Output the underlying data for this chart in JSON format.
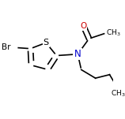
{
  "bg_color": "#ffffff",
  "bond_color": "#000000",
  "atom_colors": {
    "S": "#000000",
    "N": "#0000cd",
    "O": "#cc0000",
    "Br": "#000000"
  },
  "bond_lw": 1.2,
  "font_size_atom": 7.5,
  "font_size_group": 6.5
}
